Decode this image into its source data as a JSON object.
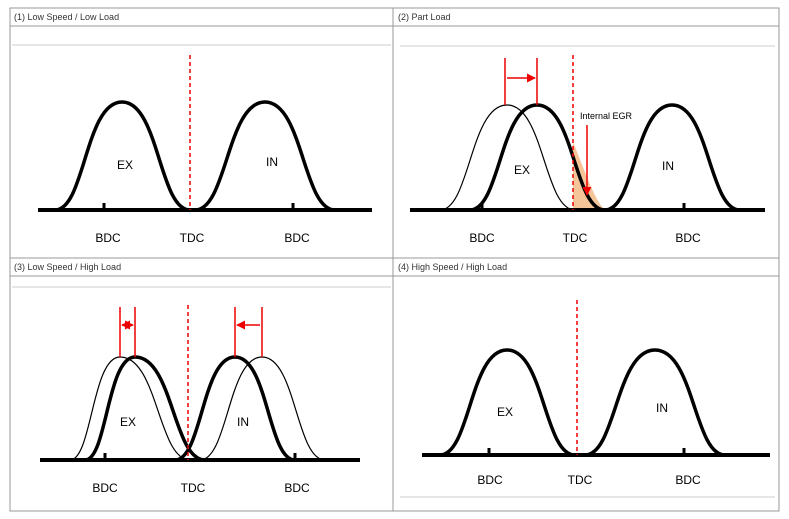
{
  "panels": [
    {
      "title": "(1) Low Speed / Low Load",
      "labels": {
        "ex": "EX",
        "in": "IN",
        "bdc_left": "BDC",
        "tdc": "TDC",
        "bdc_right": "BDC"
      }
    },
    {
      "title": "(2) Part Load",
      "annotation": "Internal EGR",
      "labels": {
        "ex": "EX",
        "in": "IN",
        "bdc_left": "BDC",
        "tdc": "TDC",
        "bdc_right": "BDC"
      }
    },
    {
      "title": "(3) Low Speed / High Load",
      "labels": {
        "ex": "EX",
        "in": "IN",
        "bdc_left": "BDC",
        "tdc": "TDC",
        "bdc_right": "BDC"
      }
    },
    {
      "title": "(4) High Speed / High Load",
      "labels": {
        "ex": "EX",
        "in": "IN",
        "bdc_left": "BDC",
        "tdc": "TDC",
        "bdc_right": "BDC"
      }
    }
  ]
}
